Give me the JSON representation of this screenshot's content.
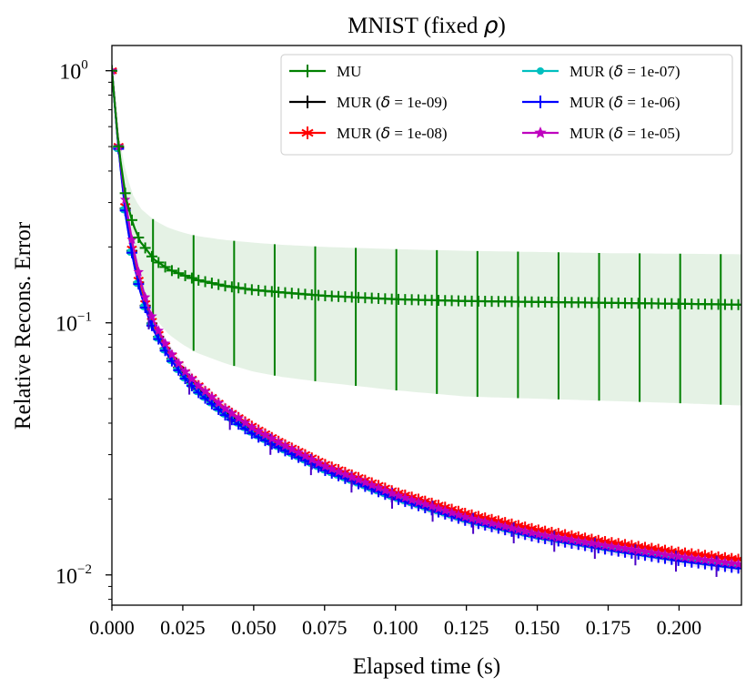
{
  "chart_data": {
    "type": "line",
    "title": "MNIST (fixed ",
    "title_symbol": "ρ",
    "title_close": ")",
    "xlabel": "Elapsed time (s)",
    "ylabel": "Relative Recons. Error",
    "yscale": "log",
    "xlim": [
      0.0,
      0.222
    ],
    "ylim_log10": [
      -2.12,
      0.1
    ],
    "x_ticks": [
      {
        "value": 0.0,
        "label": "0.000"
      },
      {
        "value": 0.025,
        "label": "0.025"
      },
      {
        "value": 0.05,
        "label": "0.050"
      },
      {
        "value": 0.075,
        "label": "0.075"
      },
      {
        "value": 0.1,
        "label": "0.100"
      },
      {
        "value": 0.125,
        "label": "0.125"
      },
      {
        "value": 0.15,
        "label": "0.150"
      },
      {
        "value": 0.175,
        "label": "0.175"
      },
      {
        "value": 0.2,
        "label": "0.200"
      }
    ],
    "y_ticks": [
      {
        "exp": 0,
        "base": "10",
        "sup": "0"
      },
      {
        "exp": -1,
        "base": "10",
        "sup": "−1"
      },
      {
        "exp": -2,
        "base": "10",
        "sup": "−2"
      }
    ],
    "legend_position": "top-right",
    "series": [
      {
        "name": "MU",
        "label": "MU",
        "color": "#008000",
        "marker": "plus",
        "x": [
          0.0,
          0.0025,
          0.005,
          0.0075,
          0.01,
          0.015,
          0.02,
          0.025,
          0.03,
          0.04,
          0.05,
          0.06,
          0.075,
          0.1,
          0.125,
          0.15,
          0.175,
          0.2,
          0.222
        ],
        "y": [
          1.0,
          0.48,
          0.31,
          0.245,
          0.21,
          0.178,
          0.163,
          0.155,
          0.148,
          0.14,
          0.135,
          0.132,
          0.128,
          0.124,
          0.122,
          0.121,
          0.12,
          0.119,
          0.118
        ],
        "upper": [
          1.0,
          0.55,
          0.39,
          0.32,
          0.285,
          0.255,
          0.238,
          0.228,
          0.221,
          0.213,
          0.208,
          0.204,
          0.2,
          0.196,
          0.193,
          0.191,
          0.189,
          0.188,
          0.187
        ],
        "lower": [
          1.0,
          0.41,
          0.235,
          0.17,
          0.14,
          0.105,
          0.09,
          0.082,
          0.076,
          0.069,
          0.064,
          0.061,
          0.058,
          0.054,
          0.051,
          0.05,
          0.049,
          0.048,
          0.047
        ]
      },
      {
        "name": "MUR-1e-09",
        "label": "MUR (",
        "delta": "δ",
        "param": " = 1e-09)",
        "color": "#000000",
        "marker": "plus",
        "x": [
          0.0,
          0.0025,
          0.005,
          0.0075,
          0.01,
          0.0125,
          0.015,
          0.02,
          0.025,
          0.03,
          0.04,
          0.05,
          0.06,
          0.075,
          0.1,
          0.125,
          0.15,
          0.175,
          0.2,
          0.222
        ],
        "y": [
          1.0,
          0.475,
          0.265,
          0.18,
          0.135,
          0.11,
          0.094,
          0.075,
          0.063,
          0.055,
          0.044,
          0.037,
          0.032,
          0.0265,
          0.0205,
          0.0168,
          0.0145,
          0.013,
          0.0118,
          0.011
        ]
      },
      {
        "name": "MUR-1e-08",
        "label": "MUR (",
        "delta": "δ",
        "param": " = 1e-08)",
        "color": "#ff0000",
        "marker": "asterisk",
        "x": [
          0.0,
          0.0025,
          0.005,
          0.0075,
          0.01,
          0.0125,
          0.015,
          0.02,
          0.025,
          0.03,
          0.04,
          0.05,
          0.06,
          0.075,
          0.1,
          0.125,
          0.15,
          0.175,
          0.2,
          0.222
        ],
        "y": [
          1.0,
          0.48,
          0.27,
          0.183,
          0.138,
          0.112,
          0.096,
          0.077,
          0.065,
          0.057,
          0.0455,
          0.0385,
          0.0333,
          0.0275,
          0.0213,
          0.0175,
          0.0151,
          0.0135,
          0.0123,
          0.0115
        ]
      },
      {
        "name": "MUR-1e-07",
        "label": "MUR (",
        "delta": "δ",
        "param": " = 1e-07)",
        "color": "#00bfbf",
        "marker": "circle",
        "x": [
          0.0,
          0.0025,
          0.005,
          0.0075,
          0.01,
          0.0125,
          0.015,
          0.02,
          0.025,
          0.03,
          0.04,
          0.05,
          0.06,
          0.075,
          0.1,
          0.125,
          0.15,
          0.175,
          0.2,
          0.222
        ],
        "y": [
          1.0,
          0.47,
          0.262,
          0.178,
          0.134,
          0.109,
          0.093,
          0.074,
          0.062,
          0.054,
          0.0435,
          0.0365,
          0.0318,
          0.0262,
          0.0203,
          0.0166,
          0.0143,
          0.0128,
          0.0116,
          0.0108
        ]
      },
      {
        "name": "MUR-1e-06",
        "label": "MUR (",
        "delta": "δ",
        "param": " = 1e-06)",
        "color": "#0000ff",
        "marker": "plus",
        "x": [
          0.0,
          0.0025,
          0.005,
          0.0075,
          0.01,
          0.0125,
          0.015,
          0.02,
          0.025,
          0.03,
          0.04,
          0.05,
          0.06,
          0.075,
          0.1,
          0.125,
          0.15,
          0.175,
          0.2,
          0.222
        ],
        "y": [
          1.0,
          0.468,
          0.26,
          0.177,
          0.133,
          0.108,
          0.092,
          0.0735,
          0.0615,
          0.0535,
          0.043,
          0.036,
          0.0315,
          0.026,
          0.0201,
          0.0164,
          0.0141,
          0.0126,
          0.0114,
          0.0106
        ]
      },
      {
        "name": "MUR-1e-05",
        "label": "MUR (",
        "delta": "δ",
        "param": " = 1e-05)",
        "color": "#bf00bf",
        "marker": "star",
        "x": [
          0.0,
          0.0025,
          0.005,
          0.0075,
          0.01,
          0.0125,
          0.015,
          0.02,
          0.025,
          0.03,
          0.04,
          0.05,
          0.06,
          0.075,
          0.1,
          0.125,
          0.15,
          0.175,
          0.2,
          0.222
        ],
        "y": [
          1.0,
          0.48,
          0.29,
          0.2,
          0.148,
          0.118,
          0.1,
          0.078,
          0.0655,
          0.057,
          0.0455,
          0.038,
          0.033,
          0.027,
          0.0208,
          0.0169,
          0.0145,
          0.013,
          0.0118,
          0.011
        ]
      }
    ]
  }
}
